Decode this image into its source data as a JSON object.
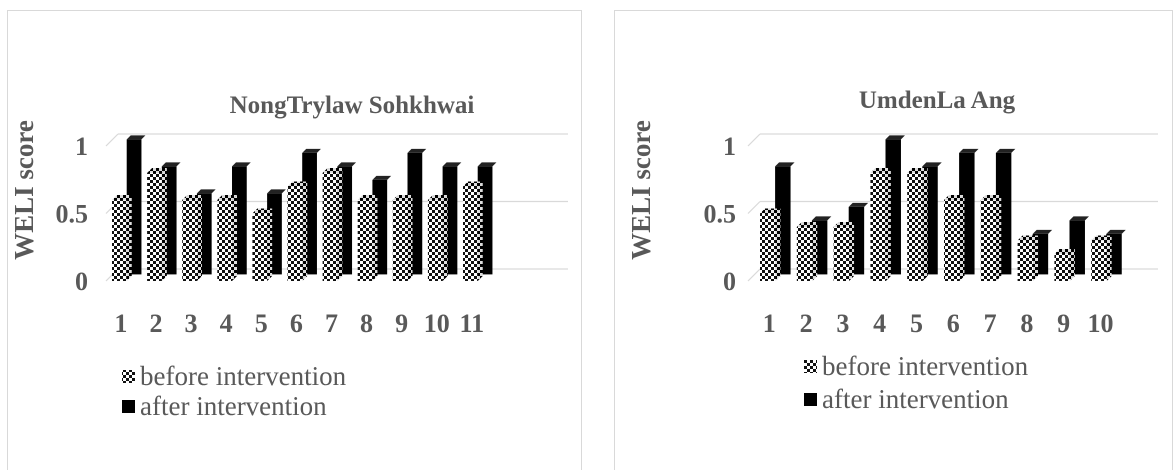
{
  "colors": {
    "after": "#000000",
    "before_pattern_dark": "#111111",
    "before_pattern_light": "#ffffff",
    "axis_text": "#595959",
    "gridline": "#d9d9d9",
    "title_text": "#595959"
  },
  "chart_data": [
    {
      "type": "bar",
      "title": "NongTrylaw Sohkhwai",
      "ylabel": "WELI score",
      "xlabel": "",
      "ylim": [
        0,
        1
      ],
      "yticks": [
        "0",
        "0.5",
        "1"
      ],
      "grid": true,
      "legend_position": "bottom-left",
      "categories": [
        "1",
        "2",
        "3",
        "4",
        "5",
        "6",
        "7",
        "8",
        "9",
        "10",
        "11"
      ],
      "series": [
        {
          "name": "before intervention",
          "values": [
            0.6,
            0.8,
            0.6,
            0.6,
            0.5,
            0.7,
            0.8,
            0.6,
            0.6,
            0.6,
            0.7
          ]
        },
        {
          "name": "after intervention",
          "values": [
            1.0,
            0.8,
            0.6,
            0.8,
            0.6,
            0.9,
            0.8,
            0.7,
            0.9,
            0.8,
            0.8
          ]
        }
      ]
    },
    {
      "type": "bar",
      "title": "UmdenLa Ang",
      "ylabel": "WELI score",
      "xlabel": "",
      "ylim": [
        0,
        1
      ],
      "yticks": [
        "0",
        "0.5",
        "1"
      ],
      "grid": true,
      "legend_position": "bottom-left",
      "categories": [
        "1",
        "2",
        "3",
        "4",
        "5",
        "6",
        "7",
        "8",
        "9",
        "10"
      ],
      "series": [
        {
          "name": "before intervention",
          "values": [
            0.5,
            0.4,
            0.4,
            0.8,
            0.8,
            0.6,
            0.6,
            0.3,
            0.2,
            0.3
          ]
        },
        {
          "name": "after intervention",
          "values": [
            0.8,
            0.4,
            0.5,
            1.0,
            0.8,
            0.9,
            0.9,
            0.3,
            0.4,
            0.3
          ]
        }
      ]
    }
  ]
}
